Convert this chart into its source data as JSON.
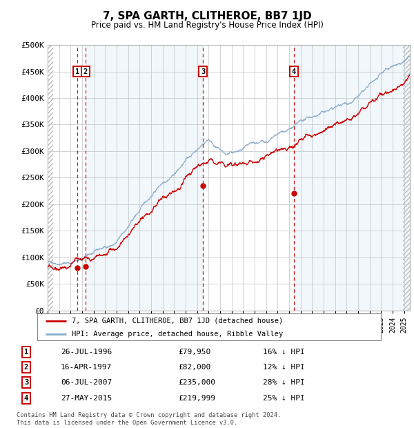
{
  "title": "7, SPA GARTH, CLITHEROE, BB7 1JD",
  "subtitle": "Price paid vs. HM Land Registry's House Price Index (HPI)",
  "ylim": [
    0,
    500000
  ],
  "yticks": [
    0,
    50000,
    100000,
    150000,
    200000,
    250000,
    300000,
    350000,
    400000,
    450000,
    500000
  ],
  "ytick_labels": [
    "£0",
    "£50K",
    "£100K",
    "£150K",
    "£200K",
    "£250K",
    "£300K",
    "£350K",
    "£400K",
    "£450K",
    "£500K"
  ],
  "hpi_line_color": "#88aacc",
  "price_color": "#cc0000",
  "background_color": "#ffffff",
  "grid_color": "#cccccc",
  "transactions": [
    {
      "date": 1996.57,
      "price": 79950,
      "label": "1"
    },
    {
      "date": 1997.29,
      "price": 82000,
      "label": "2"
    },
    {
      "date": 2007.51,
      "price": 235000,
      "label": "3"
    },
    {
      "date": 2015.41,
      "price": 219999,
      "label": "4"
    }
  ],
  "transaction_dates_str": [
    "26-JUL-1996",
    "16-APR-1997",
    "06-JUL-2007",
    "27-MAY-2015"
  ],
  "transaction_prices_str": [
    "£79,950",
    "£82,000",
    "£235,000",
    "£219,999"
  ],
  "transaction_pct_str": [
    "16% ↓ HPI",
    "12% ↓ HPI",
    "28% ↓ HPI",
    "25% ↓ HPI"
  ],
  "legend_line1": "7, SPA GARTH, CLITHEROE, BB7 1JD (detached house)",
  "legend_line2": "HPI: Average price, detached house, Ribble Valley",
  "footnote": "Contains HM Land Registry data © Crown copyright and database right 2024.\nThis data is licensed under the Open Government Licence v3.0.",
  "xmin": 1994.0,
  "xmax": 2025.5,
  "highlighted_spans": [
    {
      "start": 1997.29,
      "end": 2007.51
    },
    {
      "start": 2015.41,
      "end": 2025.5
    }
  ]
}
